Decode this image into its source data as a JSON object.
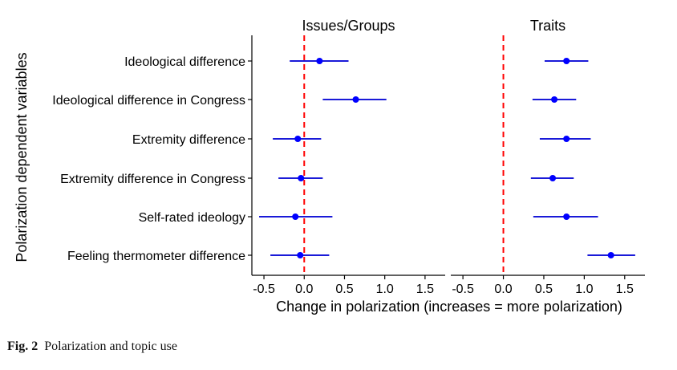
{
  "chart_data": {
    "type": "scatter",
    "y_axis_label": "Polarization dependent variables",
    "x_axis_label": "Change in polarization (increases = more polarization)",
    "categories": [
      "Ideological difference",
      "Ideological difference in Congress",
      "Extremity difference",
      "Extremity difference in Congress",
      "Self-rated ideology",
      "Feeling thermometer difference"
    ],
    "xlim": [
      -0.65,
      1.75
    ],
    "x_ticks": [
      -0.5,
      0.0,
      0.5,
      1.0,
      1.5
    ],
    "x_tick_labels": [
      "-0.5",
      "0.0",
      "0.5",
      "1.0",
      "1.5"
    ],
    "reference_line": 0.0,
    "grid": false,
    "point_color": "#0000ff",
    "interval_color": "#1a1ad8",
    "reference_color": "#ff0000",
    "panels": [
      {
        "title": "Issues/Groups",
        "estimates": [
          0.19,
          0.64,
          -0.08,
          -0.04,
          -0.11,
          -0.05
        ],
        "lower": [
          -0.18,
          0.23,
          -0.39,
          -0.32,
          -0.56,
          -0.42
        ],
        "upper": [
          0.55,
          1.02,
          0.21,
          0.23,
          0.35,
          0.31
        ]
      },
      {
        "title": "Traits",
        "estimates": [
          0.78,
          0.63,
          0.78,
          0.61,
          0.78,
          1.33
        ],
        "lower": [
          0.51,
          0.36,
          0.45,
          0.34,
          0.37,
          1.04
        ],
        "upper": [
          1.05,
          0.9,
          1.08,
          0.87,
          1.17,
          1.63
        ]
      }
    ]
  },
  "caption": {
    "label": "Fig. 2",
    "text": "Polarization and topic use"
  }
}
